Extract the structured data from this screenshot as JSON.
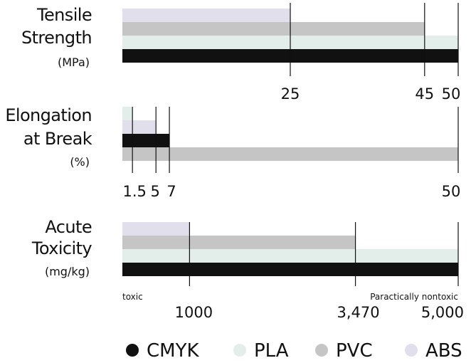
{
  "chart_data": [
    {
      "type": "bar",
      "orientation": "horizontal",
      "label_lines": [
        "Tensile",
        "Strength"
      ],
      "unit": "(MPa)",
      "series": [
        {
          "name": "ABS",
          "value": 25
        },
        {
          "name": "PVC",
          "value": 45
        },
        {
          "name": "PLA",
          "value": 50
        },
        {
          "name": "CMYK",
          "value": 50
        }
      ],
      "xlim": [
        0,
        50
      ],
      "ticks": [
        {
          "value": 25,
          "label": "25"
        },
        {
          "value": 45,
          "label": "45"
        },
        {
          "value": 50,
          "label": "50"
        }
      ],
      "annotations": []
    },
    {
      "type": "bar",
      "orientation": "horizontal",
      "label_lines": [
        "Elongation",
        "at Break"
      ],
      "unit": "(%)",
      "series": [
        {
          "name": "PLA",
          "value": 1.5
        },
        {
          "name": "ABS",
          "value": 5
        },
        {
          "name": "CMYK",
          "value": 7
        },
        {
          "name": "PVC",
          "value": 50
        }
      ],
      "xlim": [
        0,
        50
      ],
      "ticks": [
        {
          "value": 1.5,
          "label": "1.5"
        },
        {
          "value": 5,
          "label": "5"
        },
        {
          "value": 7,
          "label": "7"
        },
        {
          "value": 50,
          "label": "50"
        }
      ],
      "annotations": []
    },
    {
      "type": "bar",
      "orientation": "horizontal",
      "label_lines": [
        "Acute",
        "Toxicity"
      ],
      "unit": "(mg/kg)",
      "series": [
        {
          "name": "ABS",
          "value": 1000
        },
        {
          "name": "PVC",
          "value": 3470
        },
        {
          "name": "PLA",
          "value": 5000
        },
        {
          "name": "CMYK",
          "value": 5000
        }
      ],
      "xlim": [
        0,
        5000
      ],
      "ticks": [
        {
          "value": 1000,
          "label": "1000"
        },
        {
          "value": 3470,
          "label": "3,470"
        },
        {
          "value": 5000,
          "label": "5,000"
        }
      ],
      "annotations": [
        {
          "text": "toxic",
          "at": "start"
        },
        {
          "text": "Paractically nontoxic",
          "at": "end"
        }
      ]
    }
  ],
  "legend": {
    "placement": "bottom",
    "items": [
      {
        "name": "CMYK",
        "color": "#111111"
      },
      {
        "name": "PLA",
        "color": "#e3eeea"
      },
      {
        "name": "PVC",
        "color": "#c6c5c5"
      },
      {
        "name": "ABS",
        "color": "#e2dfed"
      }
    ]
  },
  "colors": {
    "CMYK": "#111111",
    "PLA": "#e3eeea",
    "PVC": "#c6c5c5",
    "ABS": "#e2dfed",
    "axis": "#111111",
    "text": "#111111"
  }
}
